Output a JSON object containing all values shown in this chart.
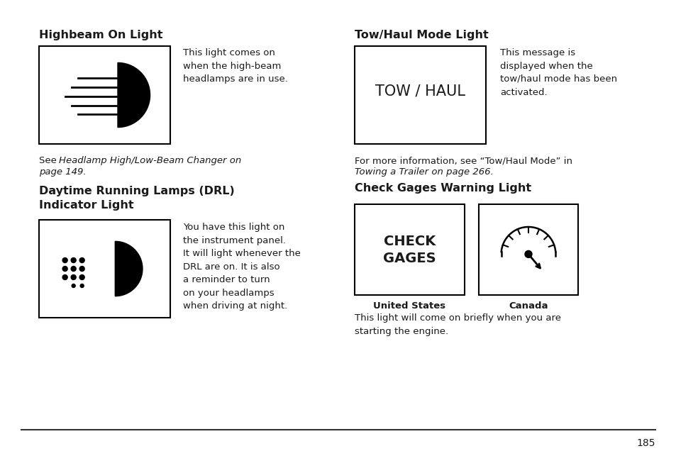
{
  "bg_color": "#ffffff",
  "text_color": "#1a1a1a",
  "title1": "Highbeam On Light",
  "title2": "Tow/Haul Mode Light",
  "title3": "Daytime Running Lamps (DRL)\nIndicator Light",
  "title4": "Check Gages Warning Light",
  "desc1": "This light comes on\nwhen the high-beam\nheadlamps are in use.",
  "desc2": "This message is\ndisplayed when the\ntow/haul mode has been\nactivated.",
  "desc3": "You have this light on\nthe instrument panel.\nIt will light whenever the\nDRL are on. It is also\na reminder to turn\non your headlamps\nwhen driving at night.",
  "desc4_note": "This light will come on briefly when you are\nstarting the engine.",
  "ref1_plain": "See ",
  "ref1_italic": "Headlamp High/Low-Beam Changer on\npage 149.",
  "ref2_plain": "For more information, see “Tow/Haul Mode” in",
  "ref2_italic": "Towing a Trailer on page 266.",
  "label_us": "United States",
  "label_ca": "Canada",
  "page_num": "185",
  "tow_haul_text": "TOW / HAUL"
}
